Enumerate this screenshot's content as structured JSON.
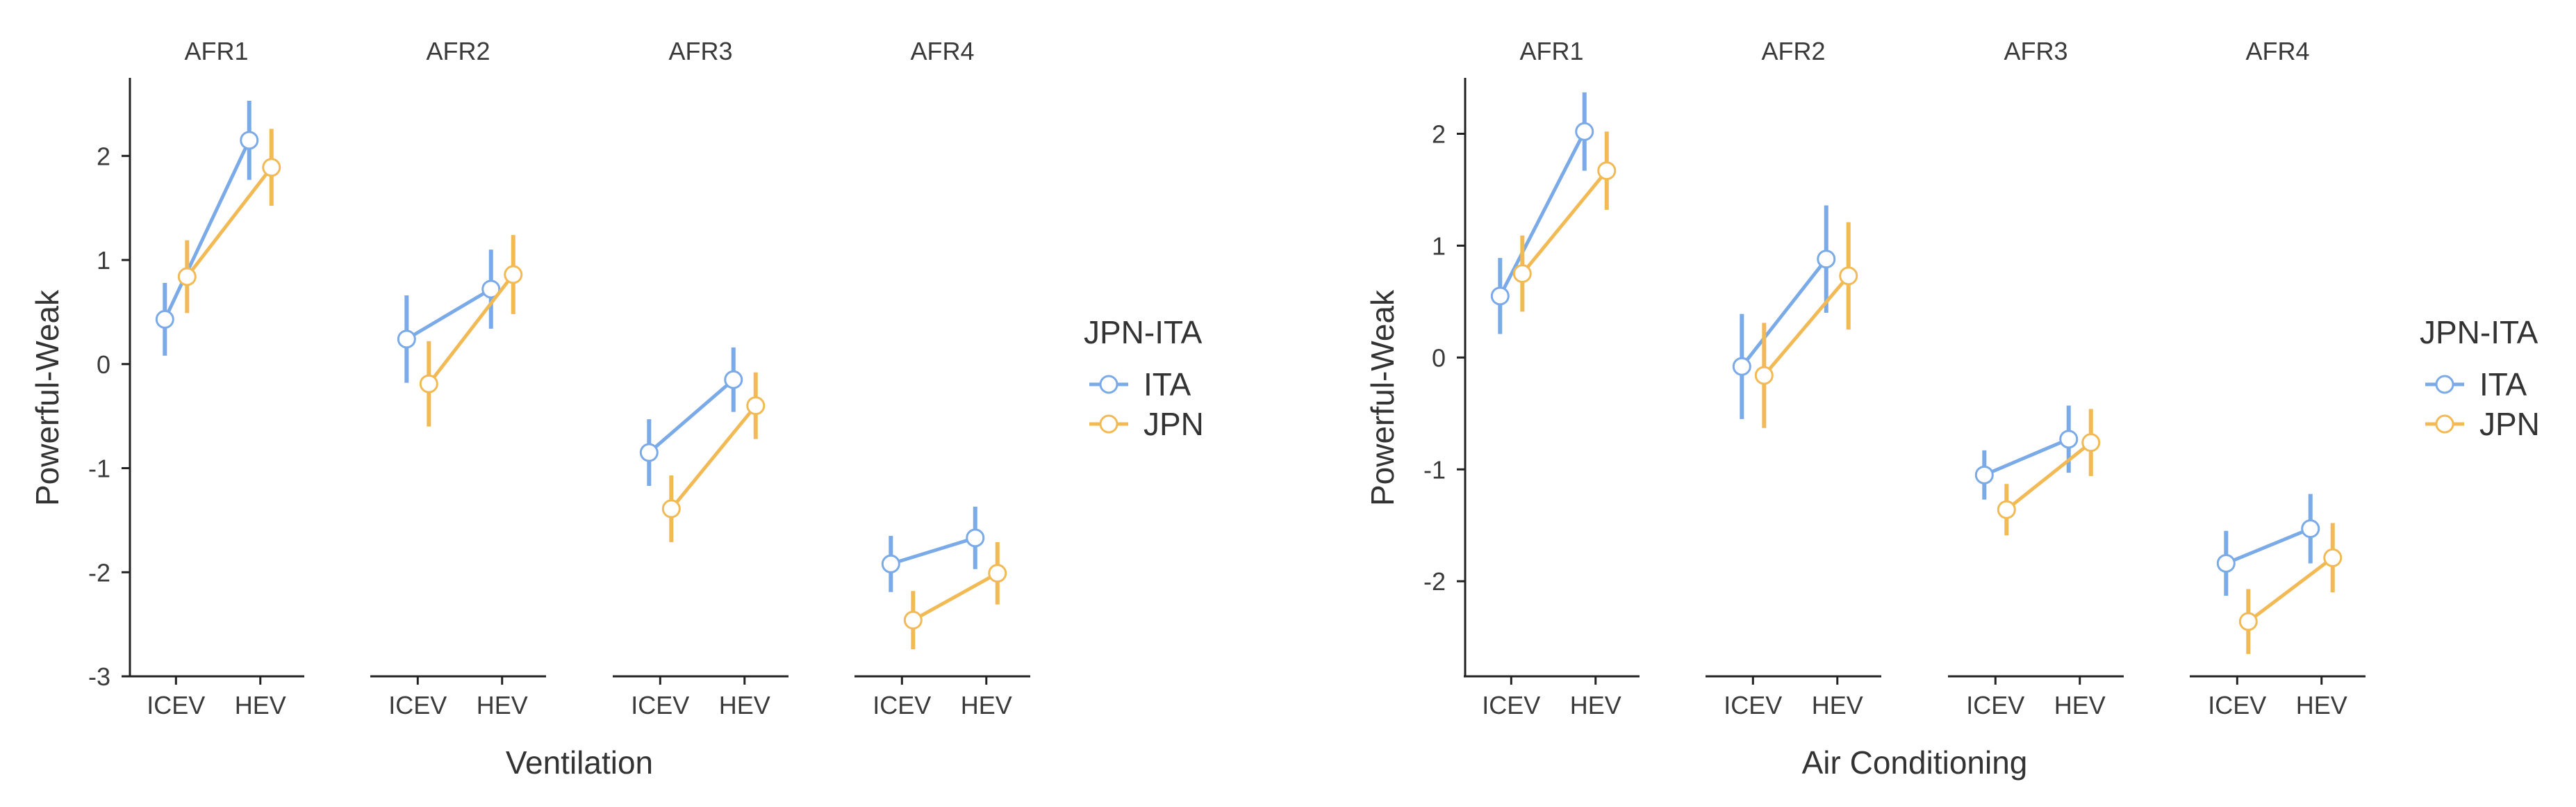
{
  "chart_data": [
    {
      "type": "line",
      "title": "",
      "xlabel": "Ventilation",
      "ylabel": "Powerful-Weak",
      "ylim": [
        -3,
        2.75
      ],
      "yticks": [
        -3,
        -2,
        -1,
        0,
        1,
        2
      ],
      "ytick_labels": [
        "-3",
        "-2",
        "-1",
        "0",
        "1",
        "2"
      ],
      "facets": [
        "AFR1",
        "AFR2",
        "AFR3",
        "AFR4"
      ],
      "categories": [
        "ICEV",
        "HEV"
      ],
      "legend_title": "JPN-ITA",
      "series": [
        {
          "name": "ITA",
          "color": "#7aaae8",
          "means": [
            [
              0.43,
              2.15
            ],
            [
              0.24,
              0.72
            ],
            [
              -0.85,
              -0.15
            ],
            [
              -1.92,
              -1.67
            ]
          ],
          "errors": [
            [
              0.35,
              0.38
            ],
            [
              0.42,
              0.38
            ],
            [
              0.32,
              0.31
            ],
            [
              0.27,
              0.3
            ]
          ]
        },
        {
          "name": "JPN",
          "color": "#f1ba55",
          "means": [
            [
              0.84,
              1.89
            ],
            [
              -0.19,
              0.86
            ],
            [
              -1.39,
              -0.4
            ],
            [
              -2.46,
              -2.01
            ]
          ],
          "errors": [
            [
              0.35,
              0.37
            ],
            [
              0.41,
              0.38
            ],
            [
              0.32,
              0.32
            ],
            [
              0.28,
              0.3
            ]
          ]
        }
      ]
    },
    {
      "type": "line",
      "title": "",
      "xlabel": "Air Conditioning",
      "ylabel": "Powerful-Weak",
      "ylim": [
        -2.85,
        2.5
      ],
      "yticks": [
        -2,
        -1,
        0,
        1,
        2
      ],
      "ytick_labels": [
        "-2",
        "-1",
        "0",
        "1",
        "2"
      ],
      "facets": [
        "AFR1",
        "AFR2",
        "AFR3",
        "AFR4"
      ],
      "categories": [
        "ICEV",
        "HEV"
      ],
      "legend_title": "JPN-ITA",
      "series": [
        {
          "name": "ITA",
          "color": "#7aaae8",
          "means": [
            [
              0.55,
              2.02
            ],
            [
              -0.08,
              0.88
            ],
            [
              -1.05,
              -0.73
            ],
            [
              -1.84,
              -1.53
            ]
          ],
          "errors": [
            [
              0.34,
              0.35
            ],
            [
              0.47,
              0.48
            ],
            [
              0.22,
              0.3
            ],
            [
              0.29,
              0.31
            ]
          ]
        },
        {
          "name": "JPN",
          "color": "#f1ba55",
          "means": [
            [
              0.75,
              1.67
            ],
            [
              -0.16,
              0.73
            ],
            [
              -1.36,
              -0.76
            ],
            [
              -2.36,
              -1.79
            ]
          ],
          "errors": [
            [
              0.34,
              0.35
            ],
            [
              0.47,
              0.48
            ],
            [
              0.23,
              0.3
            ],
            [
              0.29,
              0.31
            ]
          ]
        }
      ]
    }
  ]
}
